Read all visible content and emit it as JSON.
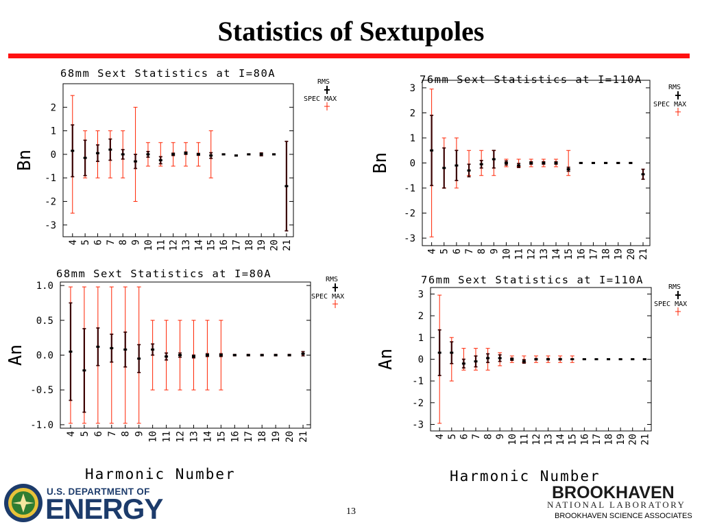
{
  "slide": {
    "title": "Statistics of Sextupoles",
    "page_number": "13",
    "x_axis_label": "Harmonic Number"
  },
  "colors": {
    "rule": "#ff1111",
    "spec_max": "#ff2200",
    "rms": "#000000",
    "rms_bar": "#3a0000"
  },
  "legend": {
    "rms": "RMS",
    "spec_max": "SPEC MAX"
  },
  "logos": {
    "doe_small": "U.S. DEPARTMENT OF",
    "doe_big": "ENERGY",
    "bnl_name": "BROOKHAVEN",
    "bnl_sub": "NATIONAL LABORATORY",
    "bnl_assoc": "BROOKHAVEN SCIENCE ASSOCIATES"
  },
  "chart_data": [
    {
      "type": "scatter",
      "title": "68mm Sext Statistics at I=80A",
      "ylabel": "Bn",
      "xlabel": "Harmonic Number",
      "ylim": [
        -3.5,
        3.0
      ],
      "yticks": [
        "-3",
        "-2",
        "-1",
        "0",
        "1",
        "2"
      ],
      "ytick_values": [
        -3,
        -2,
        -1,
        0,
        1,
        2
      ],
      "x": [
        4,
        5,
        6,
        7,
        8,
        9,
        10,
        11,
        12,
        13,
        14,
        15,
        16,
        17,
        18,
        19,
        20,
        21
      ],
      "x_tick_labels": [
        "4",
        "5",
        "6",
        "7",
        "8",
        "9",
        "10",
        "11",
        "12",
        "13",
        "14",
        "15",
        "16",
        "17",
        "18",
        "19",
        "20",
        "21"
      ],
      "series": [
        {
          "name": "RMS",
          "mean": [
            0.15,
            -0.15,
            0.05,
            0.2,
            0.0,
            -0.3,
            0.0,
            -0.25,
            0.0,
            0.05,
            0.0,
            -0.05,
            0.0,
            -0.05,
            0.0,
            0.0,
            0.0,
            -1.35
          ],
          "rms": [
            1.1,
            0.75,
            0.35,
            0.45,
            0.2,
            0.3,
            0.12,
            0.15,
            0.05,
            0.05,
            0.04,
            0.12,
            0.02,
            0.02,
            0.02,
            0.06,
            0.02,
            1.9
          ]
        },
        {
          "name": "SPEC MAX",
          "mean": [
            0,
            0,
            0,
            0,
            0,
            0,
            0,
            0,
            0,
            0,
            0,
            0,
            null,
            null,
            null,
            null,
            null,
            null
          ],
          "spec": [
            2.5,
            1.0,
            1.0,
            1.0,
            1.0,
            2.0,
            0.5,
            0.5,
            0.5,
            0.5,
            0.5,
            1.0,
            null,
            null,
            null,
            null,
            null,
            null
          ]
        }
      ]
    },
    {
      "type": "scatter",
      "title": "76mm Sext Statistics at I=110A",
      "ylabel": "Bn",
      "xlabel": "Harmonic Number",
      "ylim": [
        -3.3,
        3.3
      ],
      "yticks": [
        "-3",
        "-2",
        "-1",
        "0",
        "1",
        "2",
        "3"
      ],
      "ytick_values": [
        -3,
        -2,
        -1,
        0,
        1,
        2,
        3
      ],
      "x": [
        4,
        5,
        6,
        7,
        8,
        9,
        10,
        11,
        12,
        13,
        14,
        15,
        16,
        17,
        18,
        19,
        20,
        21
      ],
      "x_tick_labels": [
        "4",
        "5",
        "6",
        "7",
        "8",
        "9",
        "10",
        "11",
        "12",
        "13",
        "14",
        "15",
        "16",
        "17",
        "18",
        "19",
        "20",
        "21"
      ],
      "series": [
        {
          "name": "RMS",
          "mean": [
            0.5,
            -0.2,
            -0.1,
            -0.3,
            -0.05,
            0.15,
            0.0,
            -0.1,
            0.0,
            0.0,
            0.0,
            -0.25,
            0.0,
            0.0,
            0.0,
            0.0,
            0.0,
            -0.45
          ],
          "rms": [
            1.4,
            0.8,
            0.6,
            0.25,
            0.15,
            0.35,
            0.08,
            0.08,
            0.05,
            0.05,
            0.05,
            0.08,
            0.02,
            0.02,
            0.02,
            0.02,
            0.02,
            0.2
          ]
        },
        {
          "name": "SPEC MAX",
          "mean": [
            0,
            0,
            0,
            0,
            0,
            0,
            0,
            0,
            0,
            0,
            0,
            0,
            null,
            null,
            null,
            null,
            null,
            null
          ],
          "spec": [
            2.95,
            1.0,
            1.0,
            0.5,
            0.5,
            0.5,
            0.15,
            0.15,
            0.15,
            0.15,
            0.15,
            0.5,
            null,
            null,
            null,
            null,
            null,
            null
          ]
        }
      ]
    },
    {
      "type": "scatter",
      "title": "68mm Sext Statistics at I=80A",
      "ylabel": "An",
      "xlabel": "Harmonic Number",
      "ylim": [
        -1.05,
        1.05
      ],
      "yticks": [
        "-1.0",
        "-0.5",
        "0.0",
        "0.5",
        "1.0"
      ],
      "ytick_values": [
        -1.0,
        -0.5,
        0.0,
        0.5,
        1.0
      ],
      "x": [
        4,
        5,
        6,
        7,
        8,
        9,
        10,
        11,
        12,
        13,
        14,
        15,
        16,
        17,
        18,
        19,
        20,
        21
      ],
      "x_tick_labels": [
        "4",
        "5",
        "6",
        "7",
        "8",
        "9",
        "10",
        "11",
        "12",
        "13",
        "14",
        "15",
        "16",
        "17",
        "18",
        "19",
        "20",
        "21"
      ],
      "series": [
        {
          "name": "RMS",
          "mean": [
            0.05,
            -0.22,
            0.12,
            0.1,
            0.08,
            -0.05,
            0.08,
            -0.02,
            0.0,
            -0.02,
            0.0,
            0.0,
            0.0,
            0.0,
            0.0,
            0.0,
            0.0,
            0.02
          ],
          "rms": [
            0.7,
            0.6,
            0.27,
            0.2,
            0.25,
            0.2,
            0.08,
            0.05,
            0.03,
            0.02,
            0.02,
            0.02,
            0.01,
            0.01,
            0.01,
            0.01,
            0.01,
            0.03
          ]
        },
        {
          "name": "SPEC MAX",
          "mean": [
            0,
            0,
            0,
            0,
            0,
            0,
            0,
            0,
            0,
            0,
            0,
            0,
            null,
            null,
            null,
            null,
            null,
            null
          ],
          "spec": [
            0.98,
            0.98,
            0.98,
            0.98,
            0.98,
            0.98,
            0.5,
            0.5,
            0.5,
            0.5,
            0.5,
            0.5,
            null,
            null,
            null,
            null,
            null,
            null
          ]
        }
      ]
    },
    {
      "type": "scatter",
      "title": "76mm Sext Statistics at I=110A",
      "ylabel": "An",
      "xlabel": "Harmonic Number",
      "ylim": [
        -3.3,
        3.3
      ],
      "yticks": [
        "-3",
        "-2",
        "-1",
        "0",
        "1",
        "2",
        "3"
      ],
      "ytick_values": [
        -3,
        -2,
        -1,
        0,
        1,
        2,
        3
      ],
      "x": [
        4,
        5,
        6,
        7,
        8,
        9,
        10,
        11,
        12,
        13,
        14,
        15,
        16,
        17,
        18,
        19,
        20,
        21
      ],
      "x_tick_labels": [
        "4",
        "5",
        "6",
        "7",
        "8",
        "9",
        "10",
        "11",
        "12",
        "13",
        "14",
        "15",
        "16",
        "17",
        "18",
        "19",
        "20",
        "21"
      ],
      "series": [
        {
          "name": "RMS",
          "mean": [
            0.3,
            0.3,
            -0.2,
            -0.1,
            0.05,
            0.05,
            0.0,
            -0.1,
            0.0,
            0.0,
            0.0,
            0.0,
            0.0,
            0.0,
            0.0,
            0.0,
            0.0,
            0.0
          ],
          "rms": [
            1.05,
            0.5,
            0.2,
            0.25,
            0.2,
            0.15,
            0.05,
            0.08,
            0.03,
            0.03,
            0.03,
            0.02,
            0.01,
            0.01,
            0.01,
            0.01,
            0.01,
            0.01
          ]
        },
        {
          "name": "SPEC MAX",
          "mean": [
            0,
            0,
            0,
            0,
            0,
            0,
            0,
            0,
            0,
            0,
            0,
            0,
            null,
            null,
            null,
            null,
            null,
            null
          ],
          "spec": [
            2.95,
            1.0,
            0.5,
            0.5,
            0.5,
            0.3,
            0.15,
            0.15,
            0.15,
            0.15,
            0.15,
            0.15,
            null,
            null,
            null,
            null,
            null,
            null
          ]
        }
      ]
    }
  ]
}
